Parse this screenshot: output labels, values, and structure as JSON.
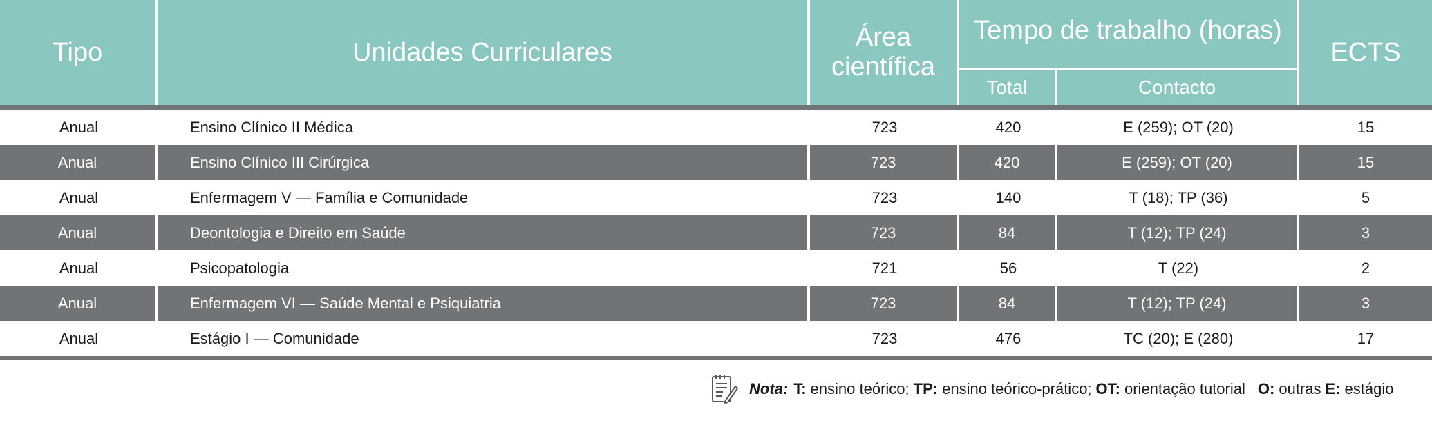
{
  "header": {
    "tipo": "Tipo",
    "unidades": "Unidades Curriculares",
    "area_line1": "Área",
    "area_line2": "científica",
    "tempo": "Tempo de trabalho (horas)",
    "total": "Total",
    "contacto": "Contacto",
    "ects": "ECTS"
  },
  "rows": [
    {
      "tipo": "Anual",
      "uc": "Ensino Clínico II Médica",
      "area": "723",
      "total": "420",
      "contacto": "E (259); OT (20)",
      "ects": "15"
    },
    {
      "tipo": "Anual",
      "uc": "Ensino Clínico III Cirúrgica",
      "area": "723",
      "total": "420",
      "contacto": "E (259); OT (20)",
      "ects": "15"
    },
    {
      "tipo": "Anual",
      "uc": "Enfermagem V — Família e Comunidade",
      "area": "723",
      "total": "140",
      "contacto": "T (18); TP (36)",
      "ects": "5"
    },
    {
      "tipo": "Anual",
      "uc": "Deontologia e Direito em Saúde",
      "area": "723",
      "total": "84",
      "contacto": "T (12); TP (24)",
      "ects": "3"
    },
    {
      "tipo": "Anual",
      "uc": "Psicopatologia",
      "area": "721",
      "total": "56",
      "contacto": "T (22)",
      "ects": "2"
    },
    {
      "tipo": "Anual",
      "uc": "Enfermagem VI — Saúde Mental e Psiquiatria",
      "area": "723",
      "total": "84",
      "contacto": "T (12); TP (24)",
      "ects": "3"
    },
    {
      "tipo": "Anual",
      "uc": "Estágio I — Comunidade",
      "area": "723",
      "total": "476",
      "contacto": "TC (20); E (280)",
      "ects": "17"
    }
  ],
  "note": {
    "icon": "notepad-pencil-icon",
    "label": "Nota:",
    "t_key": "T:",
    "t_val": "ensino teórico;",
    "tp_key": "TP:",
    "tp_val": "ensino teórico-prático;",
    "ot_key": "OT:",
    "ot_val": "orientação tutorial",
    "o_key": "O:",
    "o_val": "outras",
    "e_key": "E:",
    "e_val": "estágio"
  },
  "colors": {
    "header_teal": "#89c7c0",
    "dark_row": "#717476",
    "light_row": "#ffffff"
  }
}
